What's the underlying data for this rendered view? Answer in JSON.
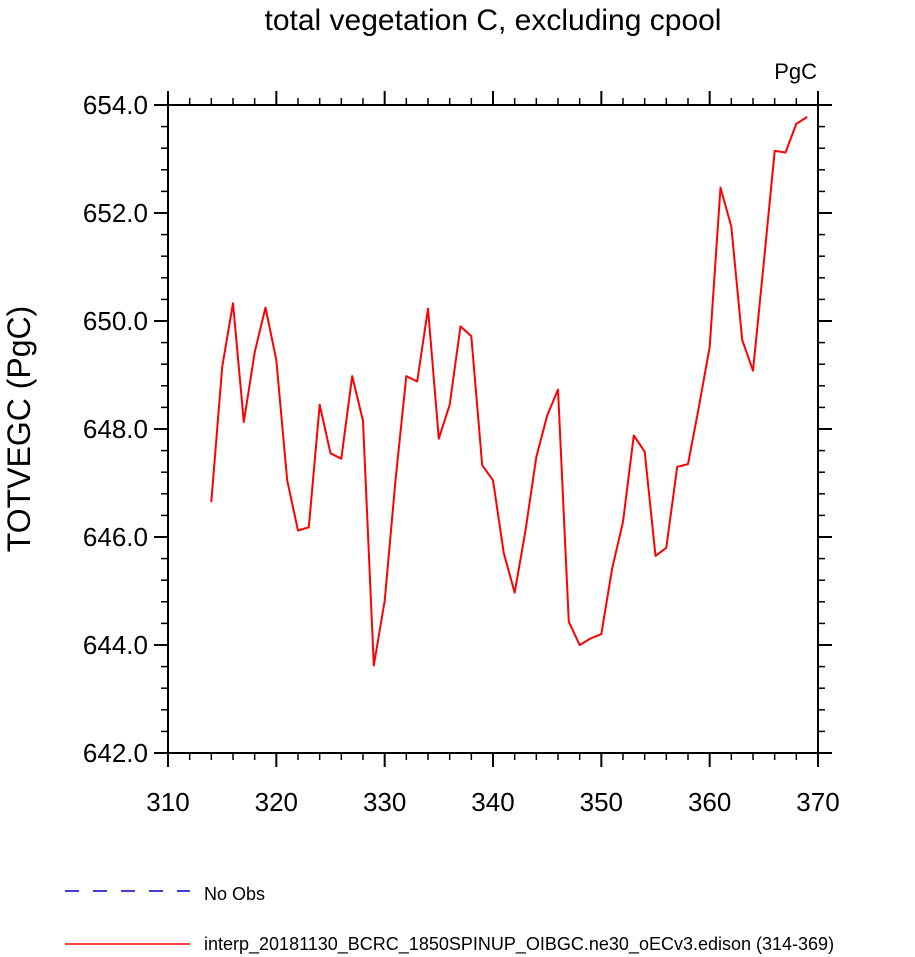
{
  "chart_data": {
    "type": "line",
    "title": "total vegetation C, excluding cpool",
    "units_label": "PgC",
    "xlabel": "",
    "ylabel": "TOTVEGC  (PgC)",
    "xlim": [
      310,
      370
    ],
    "ylim": [
      642,
      654
    ],
    "xticks": [
      310,
      320,
      330,
      340,
      350,
      360,
      370
    ],
    "xtick_labels": [
      "310",
      "320",
      "330",
      "340",
      "350",
      "360",
      "370"
    ],
    "yticks": [
      642,
      644,
      646,
      648,
      650,
      652,
      654
    ],
    "ytick_labels": [
      "642.0",
      "644.0",
      "646.0",
      "648.0",
      "650.0",
      "652.0",
      "654.0"
    ],
    "grid": false,
    "legend_position": "bottom-left",
    "series": [
      {
        "name": "interp_20181130_BCRC_1850SPINUP_OIBGC.ne30_oECv3.edison (314-369)",
        "color": "#ff0000",
        "style": "solid",
        "x": [
          314,
          315,
          316,
          317,
          318,
          319,
          320,
          321,
          322,
          323,
          324,
          325,
          326,
          327,
          328,
          329,
          330,
          331,
          332,
          333,
          334,
          335,
          336,
          337,
          338,
          339,
          340,
          341,
          342,
          343,
          344,
          345,
          346,
          347,
          348,
          349,
          350,
          351,
          352,
          353,
          354,
          355,
          356,
          357,
          358,
          359,
          360,
          361,
          362,
          363,
          364,
          365,
          366,
          367,
          368,
          369
        ],
        "values": [
          646.65,
          649.15,
          650.33,
          648.13,
          649.42,
          650.25,
          649.28,
          647.05,
          646.12,
          646.18,
          648.45,
          647.55,
          647.45,
          648.98,
          648.15,
          643.62,
          644.82,
          647.05,
          648.98,
          648.88,
          650.23,
          647.82,
          648.45,
          649.9,
          649.72,
          647.33,
          647.05,
          645.7,
          644.97,
          646.12,
          647.48,
          648.25,
          648.73,
          644.43,
          644.0,
          644.12,
          644.2,
          645.42,
          646.28,
          647.88,
          647.58,
          645.65,
          645.8,
          647.3,
          647.35,
          648.4,
          649.52,
          652.47,
          651.75,
          649.65,
          649.08,
          651.08,
          653.15,
          653.12,
          653.65,
          653.78
        ]
      }
    ],
    "legend": [
      {
        "label": "No Obs",
        "color": "#0000cc",
        "style": "dashed"
      },
      {
        "label": "interp_20181130_BCRC_1850SPINUP_OIBGC.ne30_oECv3.edison (314-369)",
        "color": "#ff0000",
        "style": "solid"
      }
    ]
  }
}
